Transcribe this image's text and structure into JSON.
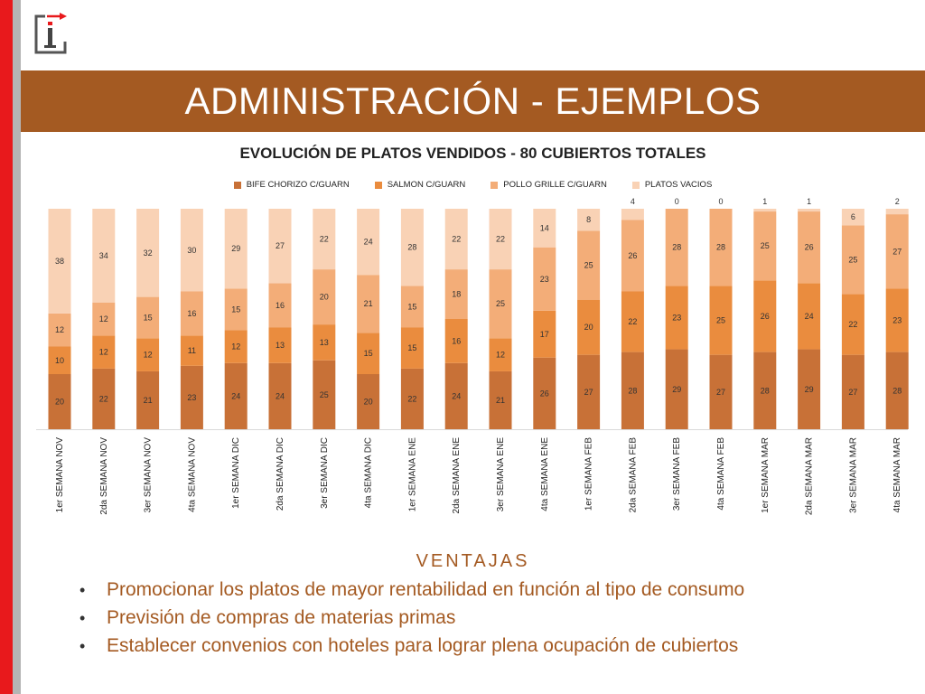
{
  "header": {
    "title": "ADMINISTRACIÓN - EJEMPLOS"
  },
  "logo": {
    "letter": "I"
  },
  "colors": {
    "accent": "#a45a22",
    "brand_red": "#e8191c",
    "bife": "#c87137",
    "salmon": "#ea8c3e",
    "pollo": "#f3ad78",
    "vacios": "#f9d2b5"
  },
  "chart_data": {
    "type": "bar",
    "stacked": true,
    "title": "EVOLUCIÓN DE PLATOS VENDIDOS - 80 CUBIERTOS TOTALES",
    "legend_position": "top",
    "ylim": [
      0,
      80
    ],
    "categories": [
      "1er SEMANA NOV",
      "2da SEMANA NOV",
      "3er SEMANA NOV",
      "4ta SEMANA NOV",
      "1er SEMANA DIC",
      "2da SEMANA DIC",
      "3er SEMANA DIC",
      "4ta SEMANA DIC",
      "1er SEMANA ENE",
      "2da SEMANA ENE",
      "3er SEMANA ENE",
      "4ta SEMANA ENE",
      "1er SEMANA FEB",
      "2da SEMANA FEB",
      "3er SEMANA FEB",
      "4ta SEMANA FEB",
      "1er SEMANA MAR",
      "2da SEMANA MAR",
      "3er SEMANA MAR",
      "4ta SEMANA MAR"
    ],
    "series": [
      {
        "name": "BIFE CHORIZO C/GUARN",
        "values": [
          20,
          22,
          21,
          23,
          24,
          24,
          25,
          20,
          22,
          24,
          21,
          26,
          27,
          28,
          29,
          27,
          28,
          29,
          27,
          28
        ]
      },
      {
        "name": "SALMON C/GUARN",
        "values": [
          10,
          12,
          12,
          11,
          12,
          13,
          13,
          15,
          15,
          16,
          12,
          17,
          20,
          22,
          23,
          25,
          26,
          24,
          22,
          23
        ]
      },
      {
        "name": "POLLO GRILLE C/GUARN",
        "values": [
          12,
          12,
          15,
          16,
          15,
          16,
          20,
          21,
          15,
          18,
          25,
          23,
          25,
          26,
          28,
          28,
          25,
          26,
          25,
          27
        ]
      },
      {
        "name": "PLATOS VACIOS",
        "values": [
          38,
          34,
          32,
          30,
          29,
          27,
          22,
          24,
          28,
          22,
          22,
          14,
          8,
          4,
          0,
          0,
          1,
          1,
          6,
          2
        ]
      }
    ]
  },
  "ventajas": {
    "title": "VENTAJAS",
    "items": [
      "Promocionar los platos de mayor rentabilidad en función al tipo de consumo",
      "Previsión de compras de materias primas",
      "Establecer convenios con hoteles para lograr plena ocupación de cubiertos"
    ]
  }
}
